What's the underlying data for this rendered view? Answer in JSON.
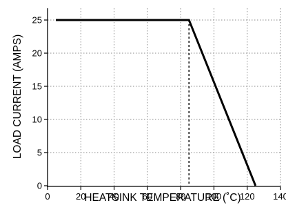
{
  "chart_data": {
    "type": "line",
    "title": "",
    "xlabel": "HEATSINK TEMPERATURE (˚C)",
    "ylabel": "LOAD CURRENT (AMPS)",
    "xlim": [
      0,
      140
    ],
    "ylim": [
      0,
      25
    ],
    "x_ticks": [
      0,
      20,
      40,
      60,
      80,
      100,
      120,
      140
    ],
    "y_ticks": [
      0,
      5,
      10,
      15,
      20,
      25
    ],
    "x_tick_labels": [
      "0",
      "20",
      "40",
      "60",
      "80",
      "100",
      "120",
      "140"
    ],
    "y_tick_labels": [
      "0",
      "5",
      "10",
      "15",
      "20",
      "25"
    ],
    "grid": true,
    "series": [
      {
        "x": [
          5,
          85,
          125
        ],
        "y": [
          25,
          25,
          0
        ]
      }
    ],
    "reference_lines": [
      {
        "orientation": "vertical",
        "x": 85,
        "y_range": [
          0,
          25
        ],
        "style": "dashed"
      }
    ]
  }
}
